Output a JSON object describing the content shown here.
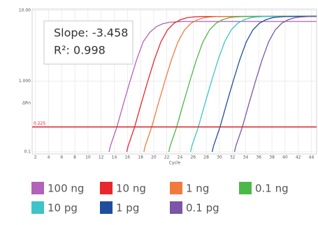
{
  "chart_data": {
    "type": "line",
    "log_y": true,
    "grid": true,
    "x_label": "Cycle",
    "y_label": "ΔRn",
    "xlim": [
      1.5,
      44.8
    ],
    "xticks": [
      2,
      4,
      6,
      8,
      10,
      12,
      14,
      16,
      18,
      20,
      22,
      24,
      26,
      28,
      30,
      32,
      34,
      36,
      38,
      40,
      42,
      44
    ],
    "ylim": [
      0.1,
      10
    ],
    "yticks": [
      0.1,
      {
        "value": 1,
        "label": "1.000"
      },
      {
        "value": 10,
        "label": "10.00"
      }
    ],
    "threshold": {
      "value": 0.225,
      "label": "0.225",
      "color": "#d9262b"
    },
    "annotations": [
      "Slope: -3.458",
      "R²: 0.998"
    ],
    "series": [
      {
        "name": "100 ng",
        "color": "#b262b8",
        "x": [
          13.2,
          13.4,
          14.4,
          15.4,
          16.4,
          17.4,
          18.4,
          19.4,
          20.4,
          21.4,
          22.4,
          23.4,
          24.4,
          44.8
        ],
        "values": [
          0.1,
          0.12,
          0.225,
          0.48,
          1.0,
          2.0,
          3.6,
          4.9,
          5.9,
          6.5,
          6.8,
          6.9,
          7.0,
          7.0
        ]
      },
      {
        "name": "10 ng",
        "color": "#e8262b",
        "x": [
          15.9,
          16.1,
          17.1,
          18.1,
          19.1,
          20.1,
          21.1,
          22.1,
          23.1,
          24.1,
          25.1,
          26.1,
          27.1,
          44.8
        ],
        "values": [
          0.1,
          0.12,
          0.225,
          0.48,
          1.0,
          2.0,
          3.6,
          5.3,
          6.6,
          7.4,
          7.9,
          8.1,
          8.2,
          8.3
        ]
      },
      {
        "name": "1 ng",
        "color": "#f07b3c",
        "x": [
          18.5,
          18.7,
          19.7,
          20.7,
          21.7,
          22.7,
          23.7,
          24.7,
          25.7,
          26.7,
          27.7,
          28.7,
          29.7,
          44.8
        ],
        "values": [
          0.1,
          0.12,
          0.225,
          0.48,
          1.0,
          2.0,
          3.6,
          5.3,
          6.6,
          7.4,
          7.9,
          8.1,
          8.2,
          8.3
        ]
      },
      {
        "name": "0.1 ng",
        "color": "#4cb848",
        "x": [
          22.3,
          22.5,
          23.5,
          24.5,
          25.5,
          26.5,
          27.5,
          28.5,
          29.5,
          30.5,
          31.5,
          32.5,
          33.5,
          44.8
        ],
        "values": [
          0.1,
          0.12,
          0.225,
          0.48,
          1.0,
          2.0,
          3.6,
          5.3,
          6.6,
          7.4,
          7.9,
          8.1,
          8.2,
          8.3
        ]
      },
      {
        "name": "10 pg",
        "color": "#3ec3c9",
        "x": [
          25.6,
          25.8,
          26.8,
          27.8,
          28.8,
          29.8,
          30.8,
          31.8,
          32.8,
          33.8,
          34.8,
          35.8,
          36.8,
          44.8
        ],
        "values": [
          0.1,
          0.12,
          0.225,
          0.48,
          1.0,
          2.0,
          3.6,
          5.3,
          6.6,
          7.4,
          7.9,
          8.1,
          8.2,
          8.3
        ]
      },
      {
        "name": "1 pg",
        "color": "#1f4e9c",
        "x": [
          28.9,
          29.1,
          30.1,
          31.1,
          32.1,
          33.1,
          34.1,
          35.1,
          36.1,
          37.1,
          38.1,
          39.1,
          40.1,
          44.8
        ],
        "values": [
          0.1,
          0.12,
          0.225,
          0.48,
          1.0,
          2.0,
          3.6,
          5.3,
          6.6,
          7.4,
          7.9,
          8.1,
          8.2,
          8.3
        ]
      },
      {
        "name": "0.1 pg",
        "color": "#7b55a6",
        "x": [
          32.3,
          32.5,
          33.5,
          34.5,
          35.5,
          36.5,
          37.5,
          38.5,
          39.5,
          40.5,
          41.5,
          42.5,
          43.5,
          44.8
        ],
        "values": [
          0.1,
          0.12,
          0.225,
          0.48,
          1.0,
          2.0,
          3.6,
          5.3,
          6.6,
          7.4,
          7.9,
          8.1,
          8.2,
          8.2
        ]
      }
    ]
  }
}
